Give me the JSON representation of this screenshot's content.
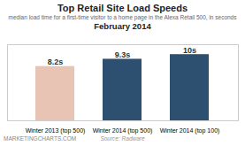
{
  "chart_data": {
    "type": "bar",
    "title": "Top Retail Site Load Speeds",
    "subtitle": "median load time for a first-time visitor to a home page in the Alexa Retail 500, in seconds",
    "annotations": [
      "February 2014",
      "Source: Radware",
      "MARKETINGCHARTS.COM"
    ],
    "categories": [
      "Winter 2013 (top 500)",
      "Winter 2014 (top 500)",
      "Winter 2014 (top 100)"
    ],
    "values": [
      8.2,
      9.3,
      10.0
    ],
    "value_labels": [
      "8.2s",
      "9.3s",
      "10s"
    ],
    "colors": [
      "#e8c4b4",
      "#2e5070",
      "#2e5070"
    ],
    "ylim": [
      0,
      11.5
    ],
    "data_labels": true,
    "tick_labels": "x",
    "grid": false
  }
}
